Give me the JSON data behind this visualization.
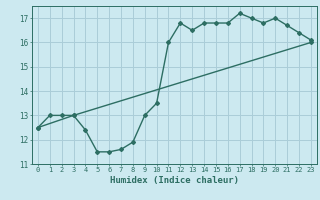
{
  "xlabel": "Humidex (Indice chaleur)",
  "bg_color": "#cce9f0",
  "grid_color": "#aacdd8",
  "line_color": "#2d6e63",
  "xlim": [
    -0.5,
    23.5
  ],
  "ylim": [
    11,
    17.5
  ],
  "yticks": [
    11,
    12,
    13,
    14,
    15,
    16,
    17
  ],
  "xticks": [
    0,
    1,
    2,
    3,
    4,
    5,
    6,
    7,
    8,
    9,
    10,
    11,
    12,
    13,
    14,
    15,
    16,
    17,
    18,
    19,
    20,
    21,
    22,
    23
  ],
  "curve1_x": [
    0,
    1,
    2,
    3,
    4,
    5,
    6,
    7,
    8,
    9,
    10,
    11,
    12,
    13,
    14,
    15,
    16,
    17,
    18,
    19,
    20,
    21,
    22,
    23
  ],
  "curve1_y": [
    12.5,
    13.0,
    13.0,
    13.0,
    12.4,
    11.5,
    11.5,
    11.6,
    11.9,
    13.0,
    13.5,
    16.0,
    16.8,
    16.5,
    16.8,
    16.8,
    16.8,
    17.2,
    17.0,
    16.8,
    17.0,
    16.7,
    16.4,
    16.1
  ],
  "curve2_x": [
    0,
    3,
    23
  ],
  "curve2_y": [
    12.5,
    13.0,
    16.0
  ]
}
